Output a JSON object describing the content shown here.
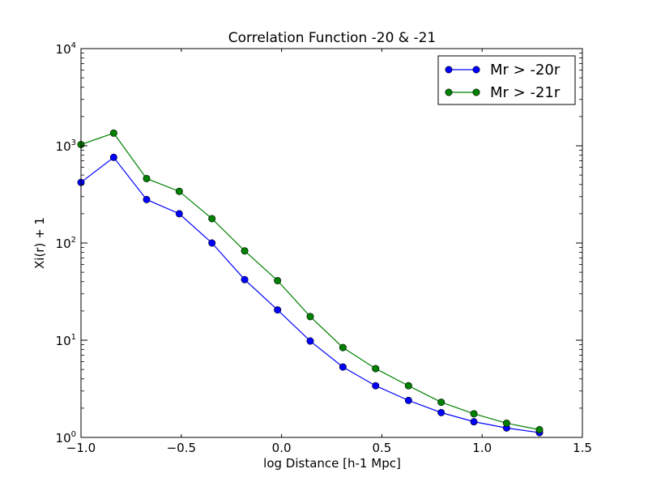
{
  "chart_data": {
    "type": "line",
    "title": "Correlation Function -20 & -21",
    "xlabel": "log Distance [h-1 Mpc]",
    "ylabel": "Xi(r) + 1",
    "xlim": [
      -1.0,
      1.5
    ],
    "ylim": [
      1,
      10000
    ],
    "yscale": "log",
    "x_ticks": [
      {
        "value": -1.0,
        "label": "−1.0"
      },
      {
        "value": -0.5,
        "label": "−0.5"
      },
      {
        "value": 0.0,
        "label": "0.0"
      },
      {
        "value": 0.5,
        "label": "0.5"
      },
      {
        "value": 1.0,
        "label": "1.0"
      },
      {
        "value": 1.5,
        "label": "1.5"
      }
    ],
    "y_ticks": [
      {
        "value": 1,
        "base": "10",
        "exp": "0"
      },
      {
        "value": 10,
        "base": "10",
        "exp": "1"
      },
      {
        "value": 100,
        "base": "10",
        "exp": "2"
      },
      {
        "value": 1000,
        "base": "10",
        "exp": "3"
      },
      {
        "value": 10000,
        "base": "10",
        "exp": "4"
      }
    ],
    "grid": false,
    "legend_position": "top-right",
    "x": [
      -1.0,
      -0.837,
      -0.673,
      -0.51,
      -0.347,
      -0.184,
      -0.02,
      0.143,
      0.306,
      0.469,
      0.633,
      0.796,
      0.959,
      1.122,
      1.286
    ],
    "series": [
      {
        "name": "Mr > -20r",
        "color": "#0000ff",
        "marker": "circle",
        "values": [
          420,
          760,
          280,
          200,
          100,
          42,
          20.5,
          9.8,
          5.3,
          3.4,
          2.4,
          1.8,
          1.45,
          1.25,
          1.12
        ]
      },
      {
        "name": "Mr > -21r",
        "color": "#008000",
        "marker": "circle",
        "values": [
          1030,
          1350,
          460,
          340,
          178,
          83,
          41,
          17.5,
          8.4,
          5.1,
          3.4,
          2.3,
          1.75,
          1.4,
          1.2
        ]
      }
    ]
  }
}
